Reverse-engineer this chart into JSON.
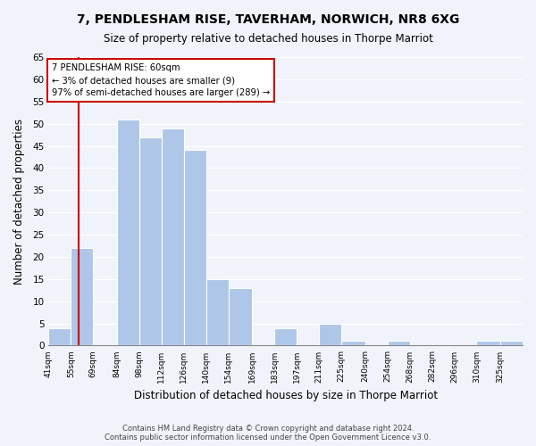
{
  "title1": "7, PENDLESHAM RISE, TAVERHAM, NORWICH, NR8 6XG",
  "title2": "Size of property relative to detached houses in Thorpe Marriot",
  "xlabel": "Distribution of detached houses by size in Thorpe Marriot",
  "ylabel": "Number of detached properties",
  "bin_labels": [
    "41sqm",
    "55sqm",
    "69sqm",
    "84sqm",
    "98sqm",
    "112sqm",
    "126sqm",
    "140sqm",
    "154sqm",
    "169sqm",
    "183sqm",
    "197sqm",
    "211sqm",
    "225sqm",
    "240sqm",
    "254sqm",
    "268sqm",
    "282sqm",
    "296sqm",
    "310sqm",
    "325sqm"
  ],
  "bar_values": [
    4,
    22,
    0,
    51,
    47,
    49,
    44,
    15,
    13,
    0,
    4,
    0,
    5,
    1,
    0,
    1,
    0,
    0,
    0,
    1,
    1
  ],
  "bar_color": "#aec6e8",
  "property_line_x": 60,
  "bin_edges": [
    41,
    55,
    69,
    84,
    98,
    112,
    126,
    140,
    154,
    169,
    183,
    197,
    211,
    225,
    240,
    254,
    268,
    282,
    296,
    310,
    325,
    339
  ],
  "annotation_text": "7 PENDLESHAM RISE: 60sqm\n← 3% of detached houses are smaller (9)\n97% of semi-detached houses are larger (289) →",
  "annotation_box_color": "#ffffff",
  "annotation_border_color": "#cc0000",
  "ylim": [
    0,
    65
  ],
  "yticks": [
    0,
    5,
    10,
    15,
    20,
    25,
    30,
    35,
    40,
    45,
    50,
    55,
    60,
    65
  ],
  "footer_line1": "Contains HM Land Registry data © Crown copyright and database right 2024.",
  "footer_line2": "Contains public sector information licensed under the Open Government Licence v3.0.",
  "bg_color": "#f0f4fa"
}
